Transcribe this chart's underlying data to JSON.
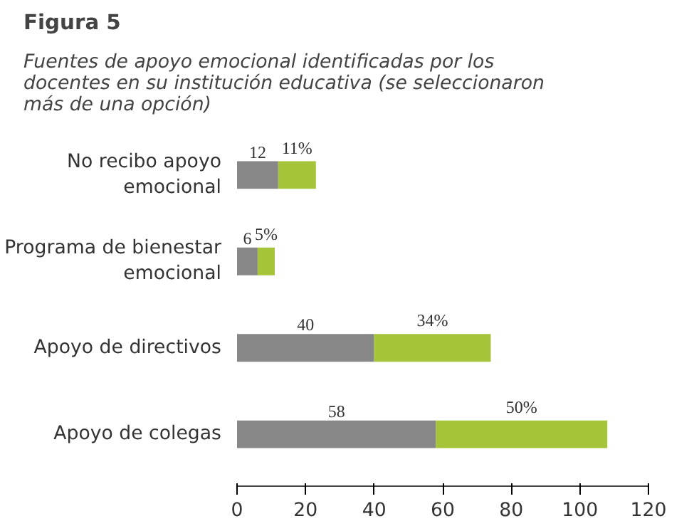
{
  "chart_data": {
    "type": "bar",
    "orientation": "horizontal",
    "stacked": true,
    "title": "Figura 5",
    "subtitle": "Fuentes de apoyo emocional identificadas por los\ndocentes en su institución educativa (se seleccionaron\nmás de una opción)",
    "categories": [
      "No recibo apoyo emocional",
      "Programa de bienestar emocional",
      "Apoyo de directivos",
      "Apoyo de colegas"
    ],
    "series": [
      {
        "color": "#878787",
        "values": [
          12,
          6,
          40,
          58
        ],
        "value_labels": [
          "12",
          "6",
          "40",
          "58"
        ]
      },
      {
        "color": "#a5c43a",
        "values": [
          11,
          5,
          34,
          50
        ],
        "value_labels": [
          "11%",
          "5%",
          "34%",
          "50%"
        ]
      }
    ],
    "xlim": [
      0,
      120
    ],
    "xticks": [
      0,
      20,
      40,
      60,
      80,
      100,
      120
    ],
    "grid": false
  }
}
